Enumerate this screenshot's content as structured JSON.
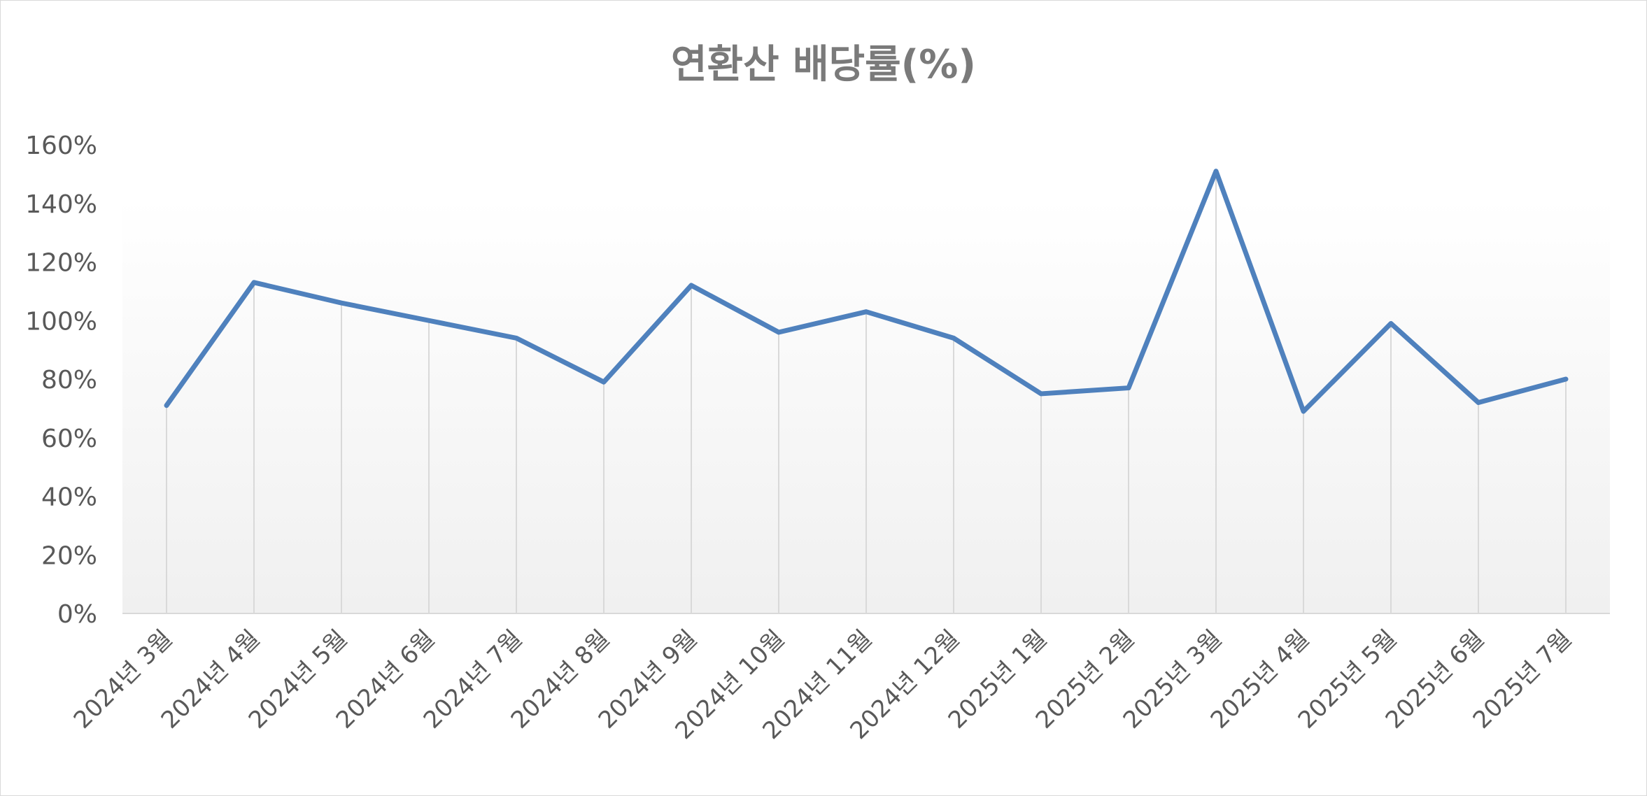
{
  "chart_data": {
    "type": "line",
    "title": "연환산 배당률(%)",
    "categories": [
      "2024년 3월",
      "2024년 4월",
      "2024년 5월",
      "2024년 6월",
      "2024년 7월",
      "2024년 8월",
      "2024년 9월",
      "2024년 10월",
      "2024년 11월",
      "2024년 12월",
      "2025년 1월",
      "2025년 2월",
      "2025년 3월",
      "2025년 4월",
      "2025년 5월",
      "2025년 6월",
      "2025년 7월"
    ],
    "series": [
      {
        "values": [
          71,
          113,
          106,
          100,
          94,
          79,
          112,
          96,
          103,
          94,
          75,
          77,
          151,
          69,
          99,
          72,
          80
        ]
      }
    ],
    "ylim": [
      0,
      160
    ],
    "yticks": [
      "0%",
      "20%",
      "40%",
      "60%",
      "80%",
      "100%",
      "120%",
      "140%",
      "160%"
    ],
    "xlabel": "",
    "ylabel": "",
    "grid": "vertical drop lines",
    "line_color": "#4f81bd",
    "background_gradient": [
      "#ffffff",
      "#f0f0f0"
    ]
  }
}
